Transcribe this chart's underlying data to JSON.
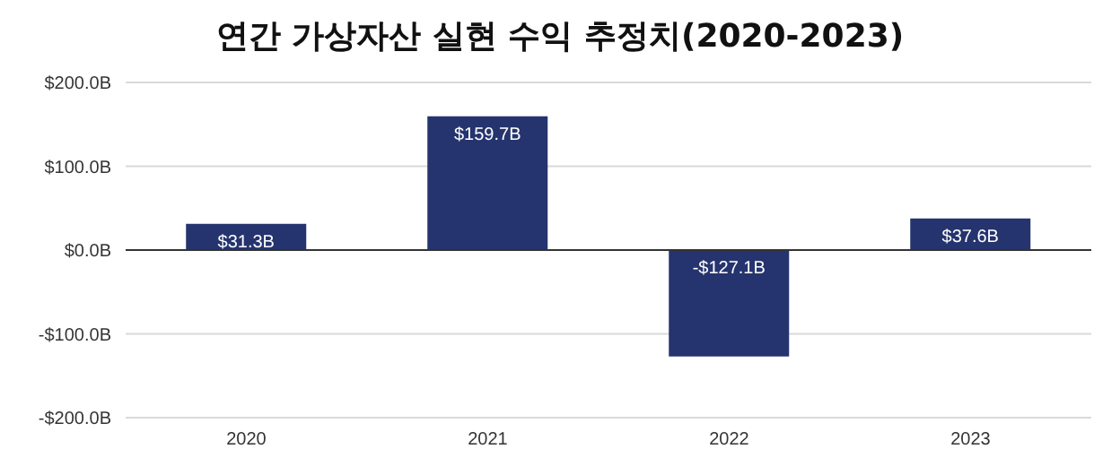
{
  "chart_data": {
    "type": "bar",
    "title": "연간 가상자산 실현 수익 추정치(2020-2023)",
    "categories": [
      "2020",
      "2021",
      "2022",
      "2023"
    ],
    "values": [
      31.3,
      159.7,
      -127.1,
      37.6
    ],
    "value_labels": [
      "$31.3B",
      "$159.7B",
      "-$127.1B",
      "$37.6B"
    ],
    "color": "#25346e",
    "ylim": [
      -200,
      200
    ],
    "yticks": [
      {
        "value": -200,
        "label": "-$200.0B"
      },
      {
        "value": -100,
        "label": "-$100.0B"
      },
      {
        "value": 0,
        "label": "$0.0B"
      },
      {
        "value": 100,
        "label": "$100.0B"
      },
      {
        "value": 200,
        "label": "$200.0B"
      }
    ],
    "grid": "y"
  }
}
